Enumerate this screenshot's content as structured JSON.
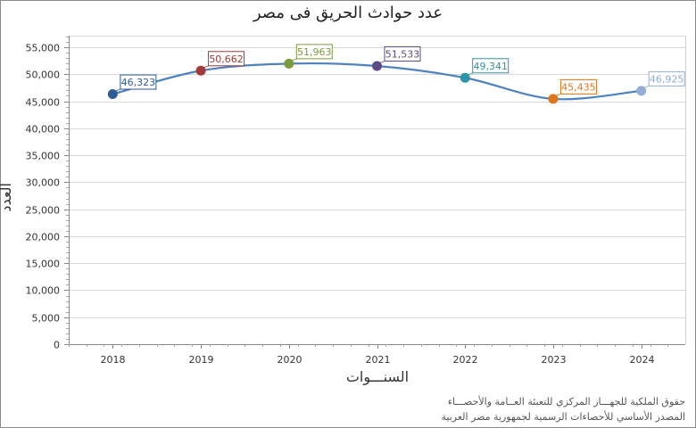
{
  "chart_data": {
    "type": "line",
    "title": "عدد حوادث الحريق فى مصر",
    "xlabel": "السنـــوات",
    "ylabel": "العدد",
    "categories": [
      "2018",
      "2019",
      "2020",
      "2021",
      "2022",
      "2023",
      "2024"
    ],
    "values": [
      46323,
      50662,
      51963,
      51533,
      49341,
      45435,
      46925
    ],
    "data_labels": [
      "46,323",
      "50,662",
      "51,963",
      "51,533",
      "49,341",
      "45,435",
      "46,925"
    ],
    "point_colors": [
      "#2e5b94",
      "#a33a3a",
      "#7b9a3c",
      "#5e4a85",
      "#2f93a8",
      "#e0741a",
      "#93add6"
    ],
    "line_color": "#4f81bd",
    "ylim": [
      0,
      57000
    ],
    "yticks": [
      0,
      5000,
      10000,
      15000,
      20000,
      25000,
      30000,
      35000,
      40000,
      45000,
      50000,
      55000
    ],
    "ytick_labels": [
      "0",
      "5,000",
      "10,000",
      "15,000",
      "20,000",
      "25,000",
      "30,000",
      "35,000",
      "40,000",
      "45,000",
      "50,000",
      "55,000"
    ],
    "grid": true,
    "legend": null
  },
  "footer": {
    "line1": "حقوق الملكية للجهـــاز المركزي للتعبئة العــامة والأحصـــاء",
    "line2": "المصدر الأساسي للأحصاءات الرسمية لجمهورية مصر العربية"
  }
}
